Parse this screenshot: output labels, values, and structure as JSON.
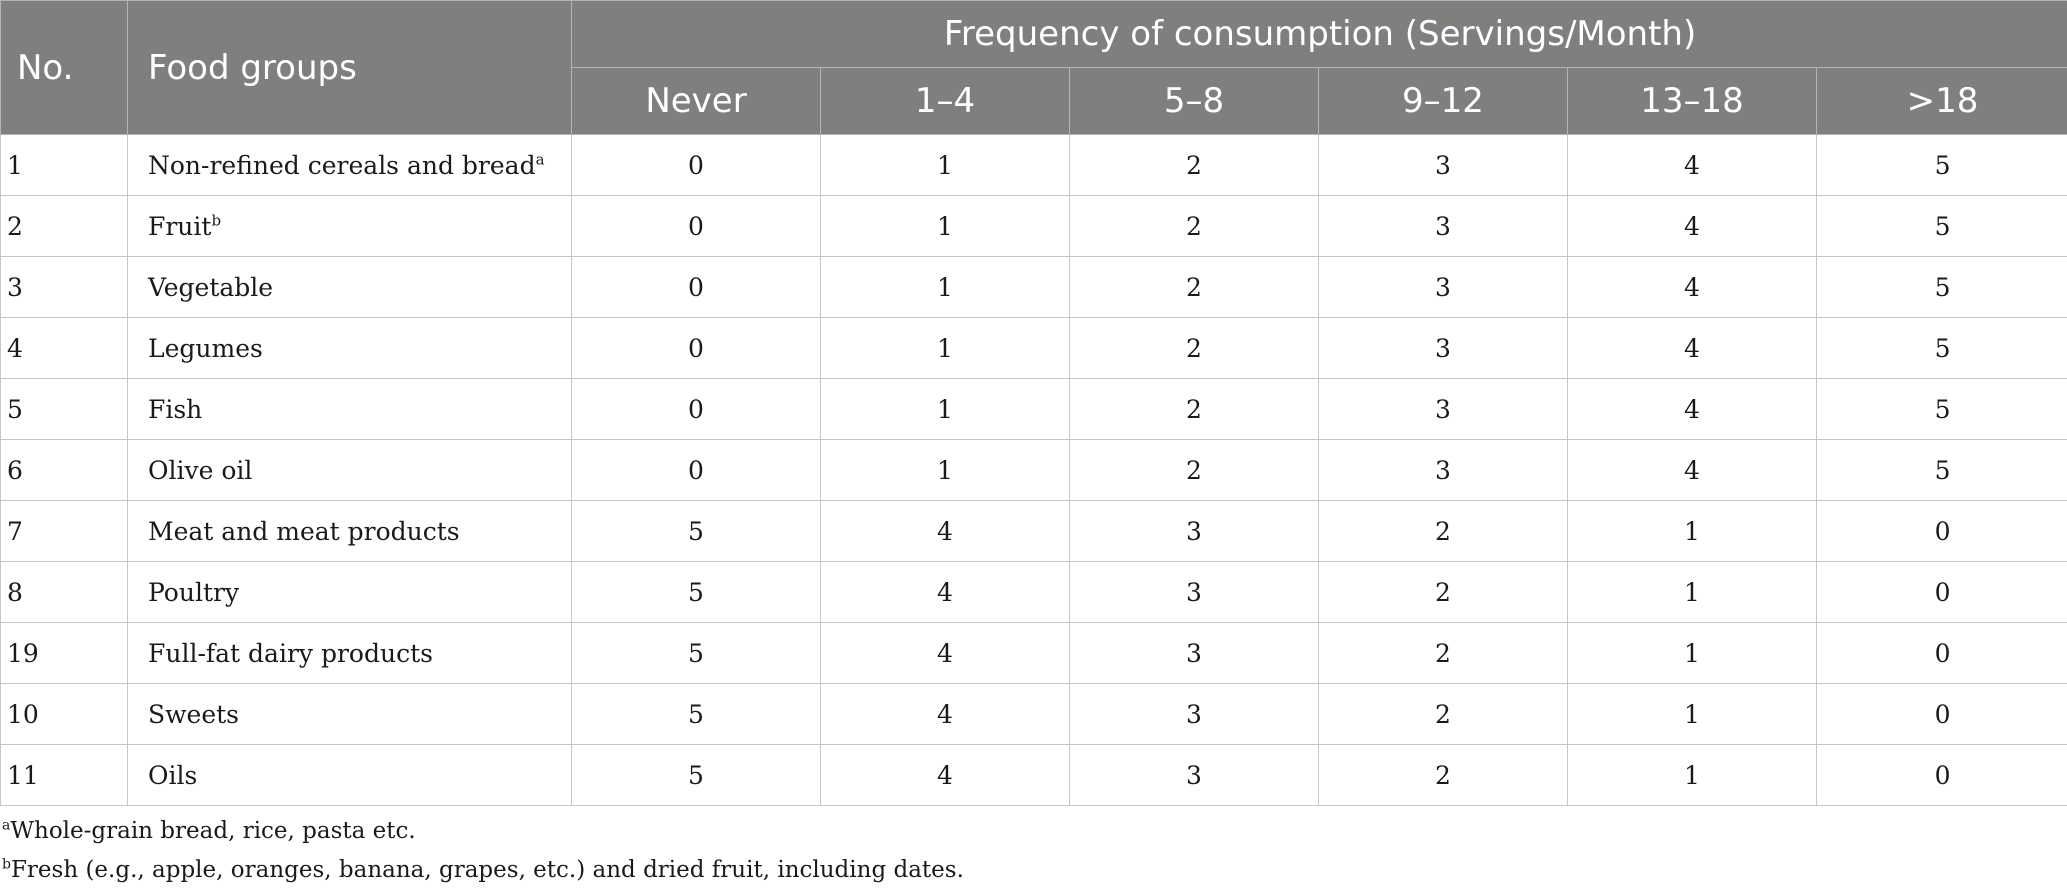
{
  "table": {
    "header": {
      "no": "No.",
      "food_groups": "Food groups",
      "frequency": "Frequency of consumption (Servings/Month)",
      "columns": [
        "Never",
        "1–4",
        "5–8",
        "9–12",
        "13–18",
        ">18"
      ]
    },
    "rows": [
      {
        "no": "1",
        "food": "Non-refined cereals and bread",
        "sup": "a",
        "values": [
          "0",
          "1",
          "2",
          "3",
          "4",
          "5"
        ]
      },
      {
        "no": "2",
        "food": "Fruit",
        "sup": "b",
        "values": [
          "0",
          "1",
          "2",
          "3",
          "4",
          "5"
        ]
      },
      {
        "no": "3",
        "food": "Vegetable",
        "sup": "",
        "values": [
          "0",
          "1",
          "2",
          "3",
          "4",
          "5"
        ]
      },
      {
        "no": "4",
        "food": "Legumes",
        "sup": "",
        "values": [
          "0",
          "1",
          "2",
          "3",
          "4",
          "5"
        ]
      },
      {
        "no": "5",
        "food": "Fish",
        "sup": "",
        "values": [
          "0",
          "1",
          "2",
          "3",
          "4",
          "5"
        ]
      },
      {
        "no": "6",
        "food": "Olive oil",
        "sup": "",
        "values": [
          "0",
          "1",
          "2",
          "3",
          "4",
          "5"
        ]
      },
      {
        "no": "7",
        "food": "Meat and meat products",
        "sup": "",
        "values": [
          "5",
          "4",
          "3",
          "2",
          "1",
          "0"
        ]
      },
      {
        "no": "8",
        "food": "Poultry",
        "sup": "",
        "values": [
          "5",
          "4",
          "3",
          "2",
          "1",
          "0"
        ]
      },
      {
        "no": "19",
        "food": "Full-fat dairy products",
        "sup": "",
        "values": [
          "5",
          "4",
          "3",
          "2",
          "1",
          "0"
        ]
      },
      {
        "no": "10",
        "food": "Sweets",
        "sup": "",
        "values": [
          "5",
          "4",
          "3",
          "2",
          "1",
          "0"
        ]
      },
      {
        "no": "11",
        "food": "Oils",
        "sup": "",
        "values": [
          "5",
          "4",
          "3",
          "2",
          "1",
          "0"
        ]
      }
    ]
  },
  "footnotes": [
    {
      "mark": "a",
      "text": "Whole-grain bread, rice, pasta etc."
    },
    {
      "mark": "b",
      "text": "Fresh (e.g., apple, oranges, banana, grapes, etc.) and dried fruit, including dates."
    }
  ],
  "colors": {
    "header_bg": "#7f7f7e",
    "header_text": "#ffffff",
    "grid": "#c6c6c4"
  }
}
